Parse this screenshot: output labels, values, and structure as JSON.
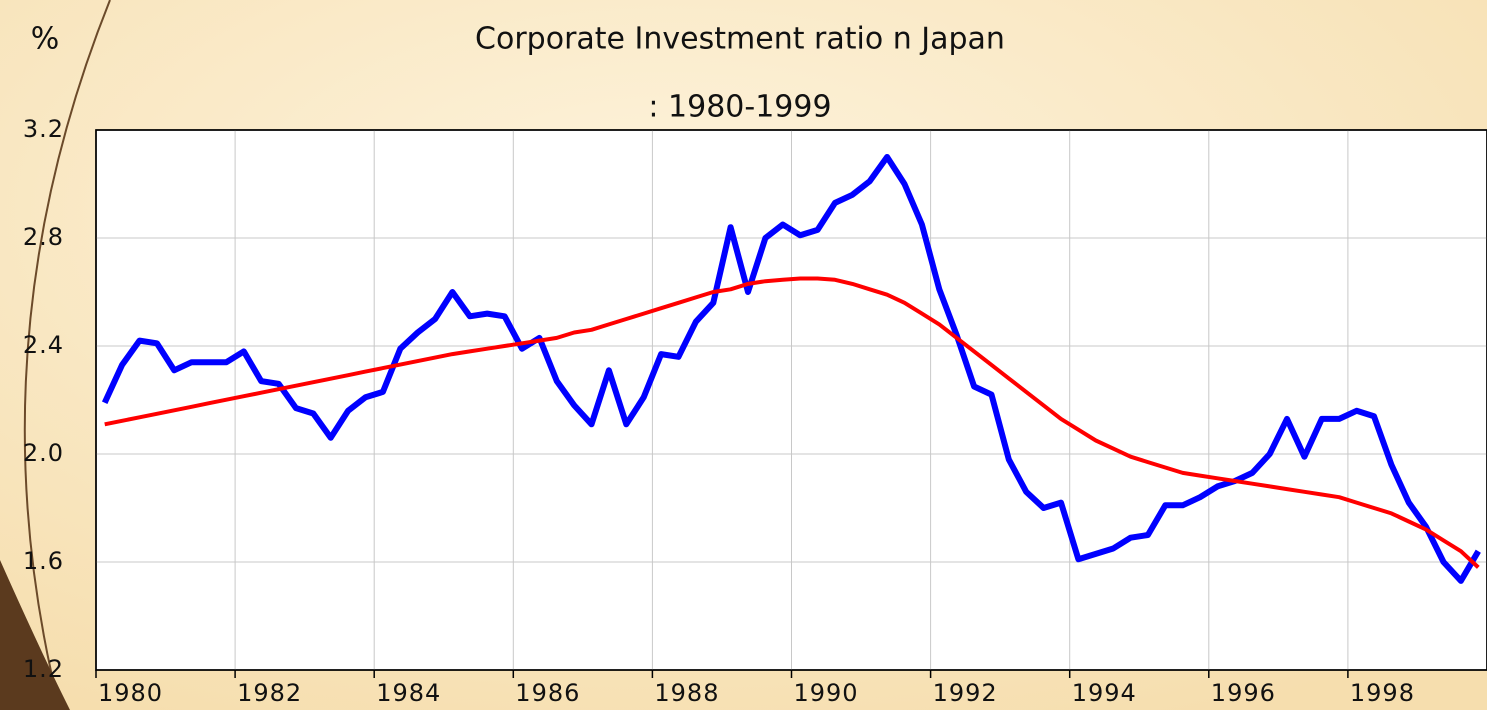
{
  "chart_data": {
    "type": "line",
    "title": "Corporate Investment ratio n Japan",
    "subtitle": ": 1980-1999",
    "y_label": "%",
    "x": [
      1980.125,
      1980.375,
      1980.625,
      1980.875,
      1981.125,
      1981.375,
      1981.625,
      1981.875,
      1982.125,
      1982.375,
      1982.625,
      1982.875,
      1983.125,
      1983.375,
      1983.625,
      1983.875,
      1984.125,
      1984.375,
      1984.625,
      1984.875,
      1985.125,
      1985.375,
      1985.625,
      1985.875,
      1986.125,
      1986.375,
      1986.625,
      1986.875,
      1987.125,
      1987.375,
      1987.625,
      1987.875,
      1988.125,
      1988.375,
      1988.625,
      1988.875,
      1989.125,
      1989.375,
      1989.625,
      1989.875,
      1990.125,
      1990.375,
      1990.625,
      1990.875,
      1991.125,
      1991.375,
      1991.625,
      1991.875,
      1992.125,
      1992.375,
      1992.625,
      1992.875,
      1993.125,
      1993.375,
      1993.625,
      1993.875,
      1994.125,
      1994.375,
      1994.625,
      1994.875,
      1995.125,
      1995.375,
      1995.625,
      1995.875,
      1996.125,
      1996.375,
      1996.625,
      1996.875,
      1997.125,
      1997.375,
      1997.625,
      1997.875,
      1998.125,
      1998.375,
      1998.625,
      1998.875,
      1999.125,
      1999.375,
      1999.625,
      1999.875
    ],
    "series": [
      {
        "color": "#0000ff",
        "width": 6,
        "values": [
          2.19,
          2.33,
          2.42,
          2.41,
          2.31,
          2.34,
          2.34,
          2.34,
          2.38,
          2.27,
          2.26,
          2.17,
          2.15,
          2.06,
          2.16,
          2.21,
          2.23,
          2.39,
          2.45,
          2.5,
          2.6,
          2.51,
          2.52,
          2.51,
          2.39,
          2.43,
          2.27,
          2.18,
          2.11,
          2.31,
          2.11,
          2.21,
          2.37,
          2.36,
          2.49,
          2.56,
          2.84,
          2.6,
          2.8,
          2.85,
          2.81,
          2.83,
          2.93,
          2.96,
          3.01,
          3.1,
          3.0,
          2.85,
          2.61,
          2.44,
          2.25,
          2.22,
          1.98,
          1.86,
          1.8,
          1.82,
          1.61,
          1.63,
          1.65,
          1.69,
          1.7,
          1.81,
          1.81,
          1.84,
          1.88,
          1.9,
          1.93,
          2.0,
          2.13,
          1.99,
          2.13,
          2.13,
          2.16,
          2.14,
          1.96,
          1.82,
          1.73,
          1.6,
          1.53,
          1.64
        ]
      },
      {
        "color": "#ff0000",
        "width": 4,
        "values": [
          2.11,
          2.123,
          2.136,
          2.149,
          2.162,
          2.175,
          2.188,
          2.201,
          2.214,
          2.227,
          2.24,
          2.253,
          2.266,
          2.279,
          2.292,
          2.305,
          2.318,
          2.331,
          2.344,
          2.357,
          2.37,
          2.38,
          2.39,
          2.4,
          2.41,
          2.42,
          2.43,
          2.45,
          2.46,
          2.48,
          2.5,
          2.52,
          2.54,
          2.56,
          2.58,
          2.6,
          2.61,
          2.63,
          2.64,
          2.645,
          2.65,
          2.65,
          2.645,
          2.63,
          2.61,
          2.59,
          2.56,
          2.52,
          2.48,
          2.43,
          2.38,
          2.33,
          2.28,
          2.23,
          2.18,
          2.13,
          2.09,
          2.05,
          2.02,
          1.99,
          1.97,
          1.95,
          1.93,
          1.92,
          1.91,
          1.9,
          1.89,
          1.88,
          1.87,
          1.86,
          1.85,
          1.84,
          1.82,
          1.8,
          1.78,
          1.75,
          1.72,
          1.68,
          1.64,
          1.58
        ]
      }
    ],
    "xlim": [
      1980,
      2000
    ],
    "xticks": [
      1980,
      1982,
      1984,
      1986,
      1988,
      1990,
      1992,
      1994,
      1996,
      1998
    ],
    "ylim": [
      1.2,
      3.2
    ],
    "yticks": [
      {
        "value": 1.2,
        "label": "1.2"
      },
      {
        "value": 1.6,
        "label": "1.6"
      },
      {
        "value": 2.0,
        "label": "2.0"
      },
      {
        "value": 2.4,
        "label": "2.4"
      },
      {
        "value": 2.8,
        "label": "2.8"
      },
      {
        "value": 3.2,
        "label": "3.2"
      }
    ],
    "grid": true
  }
}
